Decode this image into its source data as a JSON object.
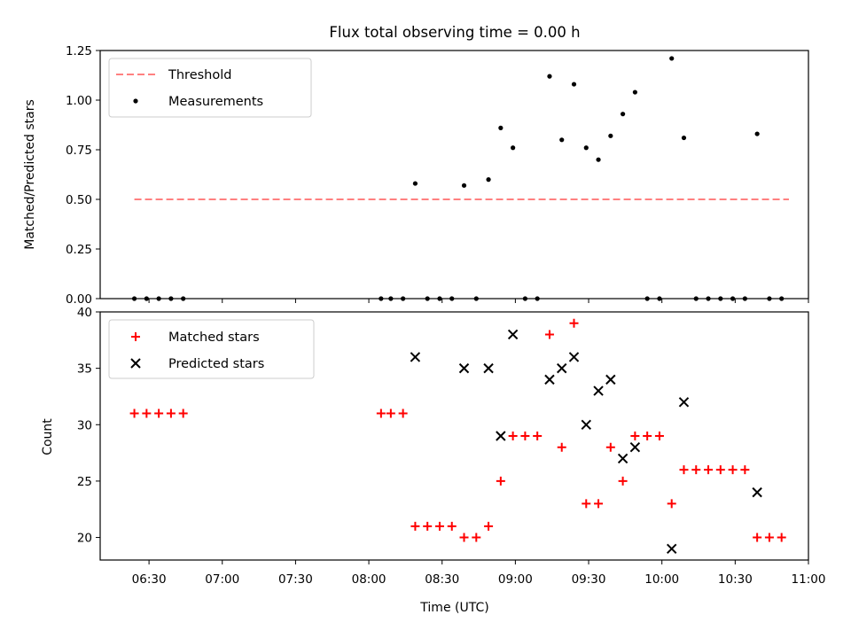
{
  "chart_data": [
    {
      "type": "scatter",
      "title": "Flux total observing time = 0.00 h",
      "xlabel": "",
      "ylabel": "Matched/Predicted stars",
      "ylim": [
        0,
        1.25
      ],
      "yticks": [
        "0.00",
        "0.25",
        "0.50",
        "0.75",
        "1.00",
        "1.25"
      ],
      "legend_position": "upper-left",
      "threshold": {
        "name": "Threshold",
        "value": 0.5,
        "x_range": [
          "06:24",
          "10:52"
        ],
        "color": "#ff8080",
        "style": "dashed"
      },
      "series": [
        {
          "name": "Measurements",
          "marker": "dot",
          "color": "#000000",
          "x": [
            "06:24",
            "06:29",
            "06:34",
            "06:39",
            "06:44",
            "08:05",
            "08:09",
            "08:14",
            "08:19",
            "08:24",
            "08:29",
            "08:34",
            "08:39",
            "08:44",
            "08:49",
            "08:54",
            "08:59",
            "09:04",
            "09:09",
            "09:14",
            "09:19",
            "09:24",
            "09:29",
            "09:34",
            "09:39",
            "09:44",
            "09:49",
            "09:54",
            "09:59",
            "10:04",
            "10:09",
            "10:14",
            "10:19",
            "10:24",
            "10:29",
            "10:34",
            "10:39",
            "10:44",
            "10:49"
          ],
          "y": [
            0,
            0,
            0,
            0,
            0,
            0,
            0,
            0,
            0.58,
            0,
            0,
            0,
            0.57,
            0,
            0.6,
            0.86,
            0.76,
            0,
            0,
            1.12,
            0.8,
            1.08,
            0.76,
            0.7,
            0.82,
            0.93,
            1.04,
            0,
            0,
            1.21,
            0.81,
            0,
            0,
            0,
            0,
            0,
            0.83,
            0,
            0
          ]
        }
      ]
    },
    {
      "type": "scatter",
      "xlabel": "Time (UTC)",
      "ylabel": "Count",
      "ylim": [
        18,
        40
      ],
      "yticks": [
        "20",
        "25",
        "30",
        "35",
        "40"
      ],
      "xticks": [
        "06:30",
        "07:00",
        "07:30",
        "08:00",
        "08:30",
        "09:00",
        "09:30",
        "10:00",
        "10:30",
        "11:00"
      ],
      "legend_position": "upper-left",
      "series": [
        {
          "name": "Matched stars",
          "marker": "plus",
          "color": "#ff0000",
          "x": [
            "06:24",
            "06:29",
            "06:34",
            "06:39",
            "06:44",
            "08:05",
            "08:09",
            "08:14",
            "08:19",
            "08:24",
            "08:29",
            "08:34",
            "08:39",
            "08:44",
            "08:49",
            "08:54",
            "08:59",
            "09:04",
            "09:09",
            "09:14",
            "09:19",
            "09:24",
            "09:29",
            "09:34",
            "09:39",
            "09:44",
            "09:49",
            "09:54",
            "09:59",
            "10:04",
            "10:09",
            "10:14",
            "10:19",
            "10:24",
            "10:29",
            "10:34",
            "10:39",
            "10:44",
            "10:49"
          ],
          "y": [
            31,
            31,
            31,
            31,
            31,
            31,
            31,
            31,
            21,
            21,
            21,
            21,
            20,
            20,
            21,
            25,
            29,
            29,
            29,
            38,
            28,
            39,
            23,
            23,
            28,
            25,
            29,
            29,
            29,
            23,
            26,
            26,
            26,
            26,
            26,
            26,
            20,
            20,
            20
          ]
        },
        {
          "name": "Predicted stars",
          "marker": "x",
          "color": "#000000",
          "x": [
            "08:19",
            "08:39",
            "08:49",
            "08:54",
            "08:59",
            "09:14",
            "09:19",
            "09:24",
            "09:29",
            "09:34",
            "09:39",
            "09:44",
            "09:49",
            "10:04",
            "10:09",
            "10:39"
          ],
          "y": [
            36,
            35,
            35,
            29,
            38,
            34,
            35,
            36,
            30,
            33,
            34,
            27,
            28,
            19,
            32,
            24
          ]
        }
      ]
    }
  ]
}
